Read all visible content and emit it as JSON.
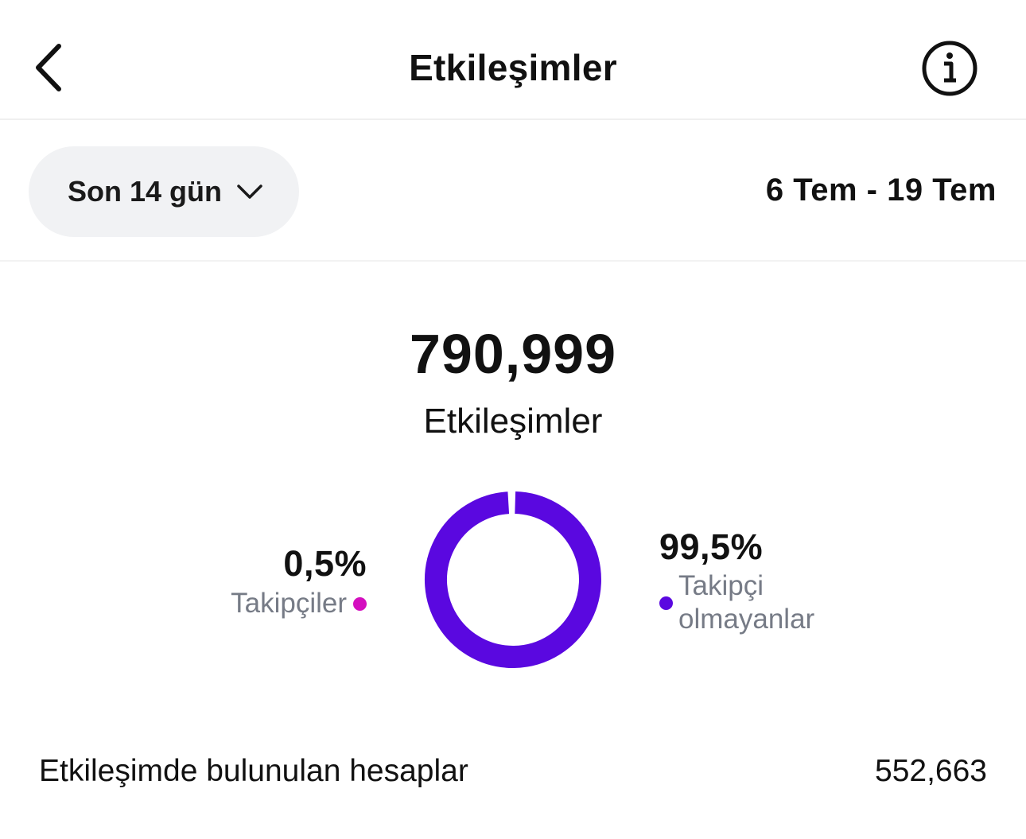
{
  "header": {
    "title": "Etkileşimler"
  },
  "filter": {
    "range_label": "Son 14 gün",
    "date_range": "6 Tem - 19 Tem"
  },
  "summary": {
    "total_value": "790,999",
    "total_label": "Etkileşimler"
  },
  "breakdown": {
    "followers": {
      "percent_text": "0,5%",
      "label": "Takipçiler",
      "color": "#d40fbf",
      "share": 0.005
    },
    "non_followers": {
      "percent_text": "99,5%",
      "label_line1": "Takipçi",
      "label_line2": "olmayanlar",
      "color": "#5a08e0",
      "share": 0.995
    }
  },
  "stats": [
    {
      "label": "Etkileşimde bulunulan hesaplar",
      "value": "552,663"
    }
  ],
  "icons": {
    "back": "chevron-left-icon",
    "info": "info-icon",
    "dropdown": "chevron-down-icon"
  }
}
